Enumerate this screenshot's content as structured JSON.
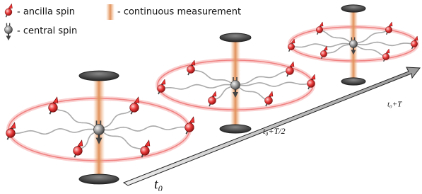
{
  "legend": {
    "ancilla_spin": "- ancilla spin",
    "continuous_measurement": "- continuous measurement",
    "central_spin": "- central spin"
  },
  "timeline": {
    "start": "t₀",
    "middle": "t₀+T/2",
    "end": "t₀+T"
  }
}
